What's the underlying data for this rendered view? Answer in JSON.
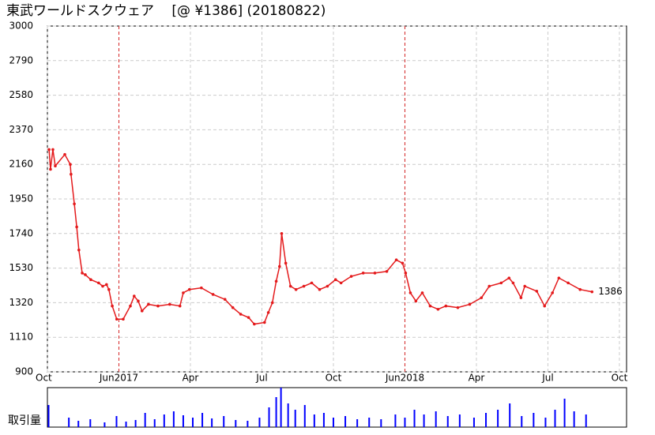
{
  "chart_data": {
    "type": "line",
    "title": "東武ワールドスクウェア　 [@ ¥1386] (20180822)",
    "xlim": [
      0,
      24.3
    ],
    "xticks": [
      {
        "value": 0,
        "label": "Oct"
      },
      {
        "value": 3,
        "label": "Jun2017"
      },
      {
        "value": 6,
        "label": "Apr"
      },
      {
        "value": 9,
        "label": "Jul"
      },
      {
        "value": 12,
        "label": "Oct"
      },
      {
        "value": 15,
        "label": "Jun2018"
      },
      {
        "value": 18,
        "label": "Apr"
      },
      {
        "value": 21,
        "label": "Jul"
      },
      {
        "value": 24,
        "label": "Oct"
      }
    ],
    "ylim": [
      900,
      3000
    ],
    "yticks": [
      900,
      1110,
      1320,
      1530,
      1740,
      1950,
      2160,
      2370,
      2580,
      2790,
      3000
    ],
    "grid": true,
    "year_markers": [
      3,
      15
    ],
    "x": [
      0.07,
      0.13,
      0.23,
      0.33,
      0.73,
      0.96,
      0.99,
      1.13,
      1.23,
      1.32,
      1.46,
      1.59,
      1.82,
      2.15,
      2.32,
      2.48,
      2.58,
      2.72,
      2.91,
      3.18,
      3.48,
      3.64,
      3.81,
      3.97,
      4.24,
      4.64,
      5.13,
      5.56,
      5.7,
      5.96,
      6.46,
      6.95,
      7.45,
      7.78,
      8.11,
      8.44,
      8.68,
      9.11,
      9.27,
      9.44,
      9.6,
      9.74,
      9.83,
      10.0,
      10.2,
      10.43,
      10.76,
      11.09,
      11.42,
      11.75,
      12.09,
      12.32,
      12.75,
      13.25,
      13.74,
      14.24,
      14.64,
      14.9,
      15.03,
      15.23,
      15.46,
      15.73,
      16.06,
      16.39,
      16.72,
      17.22,
      17.72,
      18.21,
      18.54,
      19.04,
      19.37,
      19.54,
      19.87,
      20.03,
      20.53,
      20.86,
      21.19,
      21.46,
      21.85,
      22.35,
      22.85
    ],
    "series": [
      {
        "color": "#e41a1c",
        "values": [
          2250,
          2130,
          2250,
          2150,
          2220,
          2160,
          2100,
          1920,
          1780,
          1640,
          1500,
          1490,
          1460,
          1440,
          1420,
          1430,
          1400,
          1300,
          1220,
          1220,
          1300,
          1360,
          1330,
          1270,
          1310,
          1300,
          1310,
          1300,
          1380,
          1400,
          1410,
          1370,
          1340,
          1290,
          1250,
          1230,
          1190,
          1200,
          1260,
          1320,
          1450,
          1540,
          1740,
          1560,
          1420,
          1400,
          1420,
          1440,
          1400,
          1420,
          1460,
          1440,
          1480,
          1500,
          1500,
          1510,
          1580,
          1560,
          1500,
          1380,
          1330,
          1380,
          1300,
          1280,
          1300,
          1290,
          1310,
          1350,
          1420,
          1440,
          1470,
          1440,
          1350,
          1420,
          1390,
          1300,
          1380,
          1470,
          1440,
          1400,
          1386
        ]
      }
    ],
    "volume": {
      "label": "取引量",
      "color": "#0000ff",
      "vlim": [
        0,
        50
      ],
      "x": [
        0.05,
        0.9,
        1.3,
        1.8,
        2.4,
        2.9,
        3.3,
        3.7,
        4.1,
        4.5,
        4.9,
        5.3,
        5.7,
        6.1,
        6.5,
        6.9,
        7.4,
        7.9,
        8.4,
        8.9,
        9.3,
        9.6,
        9.8,
        10.1,
        10.4,
        10.8,
        11.2,
        11.6,
        12.0,
        12.5,
        13.0,
        13.5,
        14.0,
        14.6,
        15.0,
        15.4,
        15.8,
        16.3,
        16.8,
        17.3,
        17.9,
        18.4,
        18.9,
        19.4,
        19.9,
        20.4,
        20.9,
        21.3,
        21.7,
        22.1,
        22.6
      ],
      "values": [
        28,
        12,
        8,
        10,
        6,
        14,
        7,
        9,
        18,
        10,
        16,
        20,
        15,
        12,
        18,
        11,
        14,
        9,
        8,
        12,
        25,
        38,
        50,
        30,
        22,
        28,
        16,
        18,
        12,
        14,
        10,
        12,
        10,
        16,
        12,
        22,
        16,
        20,
        14,
        16,
        12,
        18,
        22,
        30,
        14,
        18,
        12,
        22,
        36,
        20,
        16
      ]
    }
  }
}
